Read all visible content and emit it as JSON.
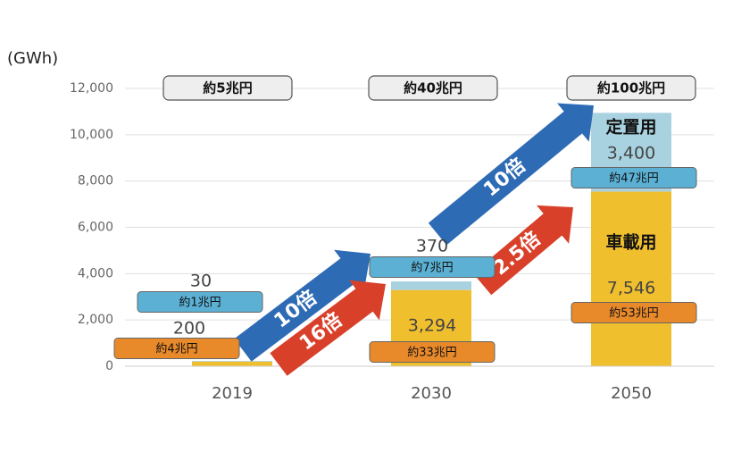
{
  "chart_data": {
    "type": "bar",
    "stacked": true,
    "unit_label": "(GWh)",
    "categories": [
      "2019",
      "2030",
      "2050"
    ],
    "series": [
      {
        "name": "車載用",
        "color": "#F0BF2E",
        "badge_color": "#E8892A",
        "values": [
          200,
          3294,
          7546
        ],
        "value_labels": [
          "200",
          "3,294",
          "7,546"
        ],
        "market_labels": [
          "約4兆円",
          "約33兆円",
          "約53兆円"
        ]
      },
      {
        "name": "定置用",
        "color": "#A9D2E0",
        "badge_color": "#5BB0D4",
        "values": [
          30,
          370,
          3400
        ],
        "value_labels": [
          "30",
          "370",
          "3,400"
        ],
        "market_labels": [
          "約1兆円",
          "約7兆円",
          "約47兆円"
        ]
      }
    ],
    "total_market_labels": [
      "約5兆円",
      "約40兆円",
      "約100兆円"
    ],
    "growth_labels": [
      {
        "text": "10倍",
        "color": "#2E6BB5"
      },
      {
        "text": "16倍",
        "color": "#D8402A"
      },
      {
        "text": "2.5倍",
        "color": "#D8402A"
      },
      {
        "text": "10倍",
        "color": "#2E6BB5"
      }
    ],
    "ylim": [
      0,
      12000
    ],
    "yticks": [
      0,
      {
        "value": 2000,
        "label": "2,000"
      },
      {
        "value": 4000,
        "label": "4,000"
      },
      {
        "value": 6000,
        "label": "6,000"
      },
      {
        "value": 8000,
        "label": "8,000"
      },
      {
        "value": 10000,
        "label": "10,000"
      },
      {
        "value": 12000,
        "label": "12,000"
      }
    ],
    "grid": true
  }
}
